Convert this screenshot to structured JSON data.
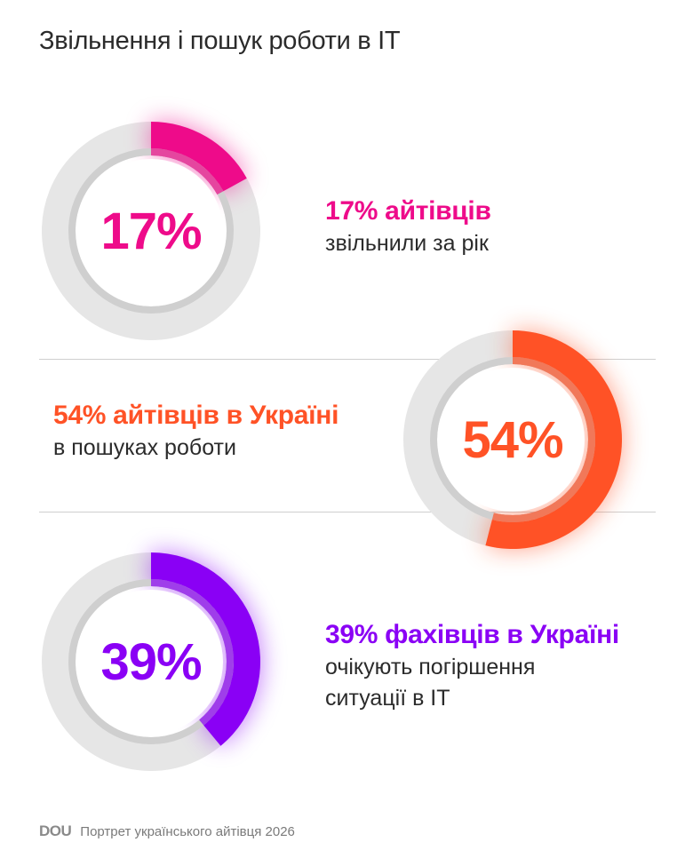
{
  "title": "Звільнення і пошук роботи в IT",
  "footer": {
    "logo": "DOU",
    "caption": "Портрет українського айтівця 2026"
  },
  "colors": {
    "track": "#e6e6e6",
    "inner_ring": "#cfcfcf",
    "text": "#2b2b2b"
  },
  "chart_data": [
    {
      "type": "pie",
      "variant": "donut",
      "value": 17,
      "label": "17%",
      "color": "#ee0b8a",
      "headline": "17% айтівців",
      "description": [
        "звільнили за рік"
      ]
    },
    {
      "type": "pie",
      "variant": "donut",
      "value": 54,
      "label": "54%",
      "color": "#ff5226",
      "headline": "54% айтівців в Україні",
      "description": [
        "в пошуках роботи"
      ]
    },
    {
      "type": "pie",
      "variant": "donut",
      "value": 39,
      "label": "39%",
      "color": "#8a00f5",
      "headline": "39% фахівців в Україні",
      "description": [
        "очікують погіршення",
        "ситуації в IT"
      ]
    }
  ]
}
